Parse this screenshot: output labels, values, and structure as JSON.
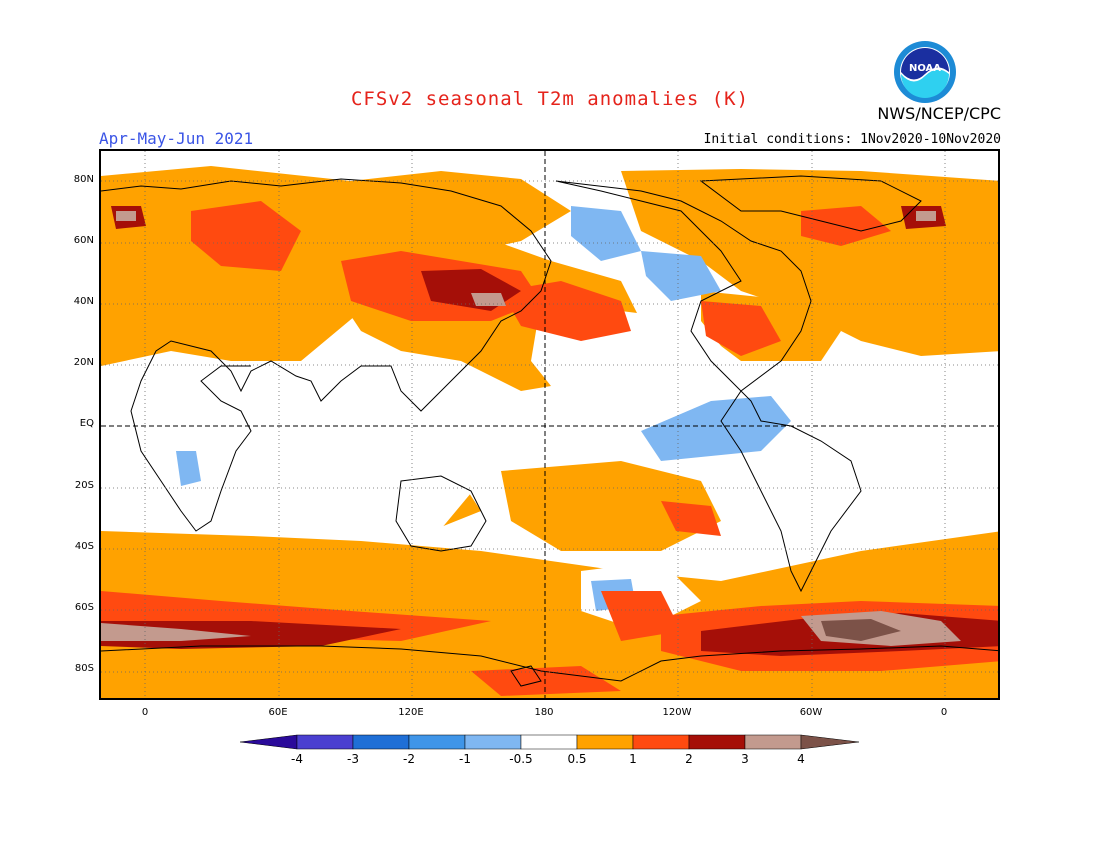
{
  "title": "CFSv2 seasonal T2m anomalies (K)",
  "period": "Apr-May-Jun 2021",
  "agency": "NWS/NCEP/CPC",
  "initial_conditions": "Initial conditions: 1Nov2020-10Nov2020",
  "logo_text": "NOAA",
  "lat_labels": [
    "80N",
    "60N",
    "40N",
    "20N",
    "EQ",
    "20S",
    "40S",
    "60S",
    "80S"
  ],
  "lon_labels": [
    "0",
    "60E",
    "120E",
    "180",
    "120W",
    "60W",
    "0"
  ],
  "colorbar": {
    "labels": [
      "-4",
      "-3",
      "-2",
      "-1",
      "-0.5",
      "0.5",
      "1",
      "2",
      "3",
      "4"
    ],
    "colors": [
      "#2a0a9a",
      "#4a3fd0",
      "#1f6fd6",
      "#3f95e8",
      "#7fb7f2",
      "#ffffff",
      "#ffa200",
      "#ff4a10",
      "#a50f08",
      "#c39a8e",
      "#7c5248"
    ]
  }
}
